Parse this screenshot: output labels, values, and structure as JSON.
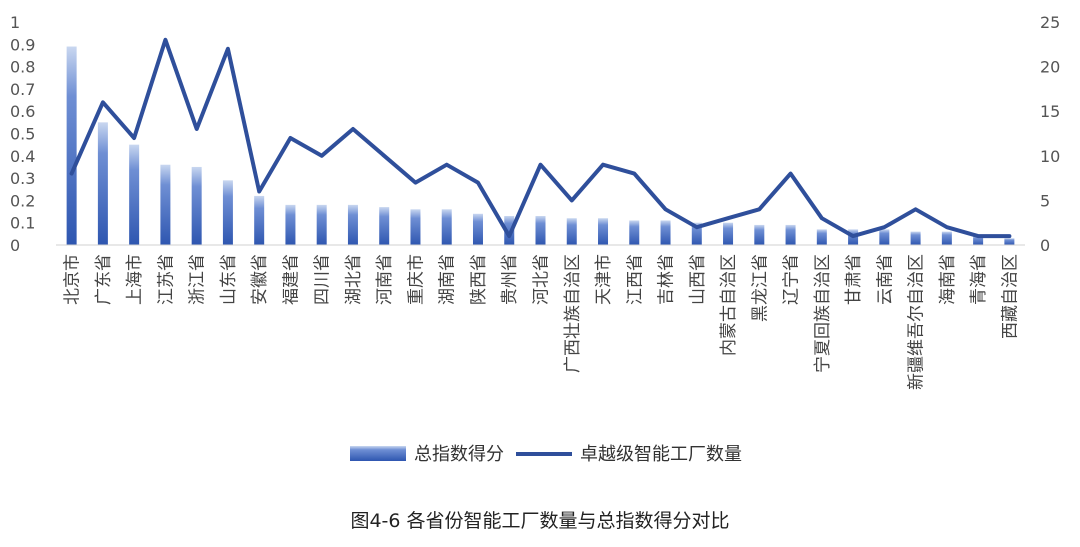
{
  "caption": "图4-6 各省份智能工厂数量与总指数得分对比",
  "chart_data": {
    "type": "bar",
    "categories": [
      "北京市",
      "广东省",
      "上海市",
      "江苏省",
      "浙江省",
      "山东省",
      "安徽省",
      "福建省",
      "四川省",
      "湖北省",
      "河南省",
      "重庆市",
      "湖南省",
      "陕西省",
      "贵州省",
      "河北省",
      "广西壮族自治区",
      "天津市",
      "江西省",
      "吉林省",
      "山西省",
      "内蒙古自治区",
      "黑龙江省",
      "辽宁省",
      "宁夏回族自治区",
      "甘肃省",
      "云南省",
      "新疆维吾尔自治区",
      "海南省",
      "青海省",
      "西藏自治区"
    ],
    "series": [
      {
        "name": "总指数得分",
        "kind": "bar",
        "axis": "left",
        "color": "#4a72c4",
        "values": [
          0.89,
          0.55,
          0.45,
          0.36,
          0.35,
          0.29,
          0.22,
          0.18,
          0.18,
          0.18,
          0.17,
          0.16,
          0.16,
          0.14,
          0.13,
          0.13,
          0.12,
          0.12,
          0.11,
          0.11,
          0.1,
          0.1,
          0.09,
          0.09,
          0.07,
          0.07,
          0.07,
          0.06,
          0.06,
          0.04,
          0.03
        ]
      },
      {
        "name": "卓越级智能工厂数量",
        "kind": "line",
        "axis": "right",
        "color": "#2f4f9b",
        "values": [
          8,
          16,
          12,
          23,
          13,
          22,
          6,
          12,
          10,
          13,
          10,
          7,
          9,
          7,
          1,
          9,
          5,
          9,
          8,
          4,
          2,
          3,
          4,
          8,
          3,
          1,
          2,
          4,
          2,
          1,
          1
        ]
      }
    ],
    "y_left": {
      "ylim": [
        0,
        1
      ],
      "ticks": [
        "0",
        "0.1",
        "0.2",
        "0.3",
        "0.4",
        "0.5",
        "0.6",
        "0.7",
        "0.8",
        "0.9",
        "1"
      ]
    },
    "y_right": {
      "ylim": [
        0,
        25
      ],
      "ticks": [
        "0",
        "5",
        "10",
        "15",
        "20",
        "25"
      ]
    },
    "grid": false,
    "legend_position": "bottom-center"
  }
}
